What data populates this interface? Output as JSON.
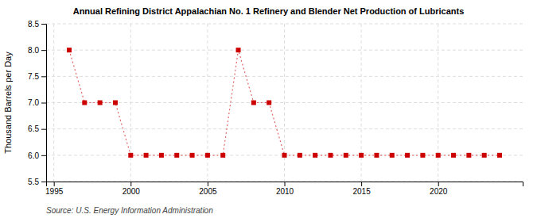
{
  "chart_data": {
    "type": "line",
    "title": "Annual Refining District Appalachian No. 1 Refinery and Blender Net Production of Lubricants",
    "ylabel": "Thousand Barrels per Day",
    "source": "Source: U.S. Energy Information Administration",
    "x": [
      1996,
      1997,
      1998,
      1999,
      2000,
      2001,
      2002,
      2003,
      2004,
      2005,
      2006,
      2007,
      2008,
      2009,
      2010,
      2011,
      2012,
      2013,
      2014,
      2015,
      2016,
      2017,
      2018,
      2019,
      2020,
      2021,
      2022,
      2023,
      2024
    ],
    "values": [
      8.0,
      7.0,
      7.0,
      7.0,
      6.0,
      6.0,
      6.0,
      6.0,
      6.0,
      6.0,
      6.0,
      8.0,
      7.0,
      7.0,
      6.0,
      6.0,
      6.0,
      6.0,
      6.0,
      6.0,
      6.0,
      6.0,
      6.0,
      6.0,
      6.0,
      6.0,
      6.0,
      6.0,
      6.0
    ],
    "color": "#cc0000",
    "marker": "square",
    "line_style": "dotted",
    "xlim": [
      1994.5,
      2025.5
    ],
    "xticks": [
      1995,
      2000,
      2005,
      2010,
      2015,
      2020
    ],
    "ylim": [
      5.5,
      8.5
    ],
    "yticks": [
      5.5,
      {
        "value": 6.0,
        "label": "6.0"
      },
      6.5,
      {
        "value": 7.0,
        "label": "7.0"
      },
      7.5,
      {
        "value": 8.0,
        "label": "8.0"
      },
      8.5
    ],
    "grid": true
  }
}
